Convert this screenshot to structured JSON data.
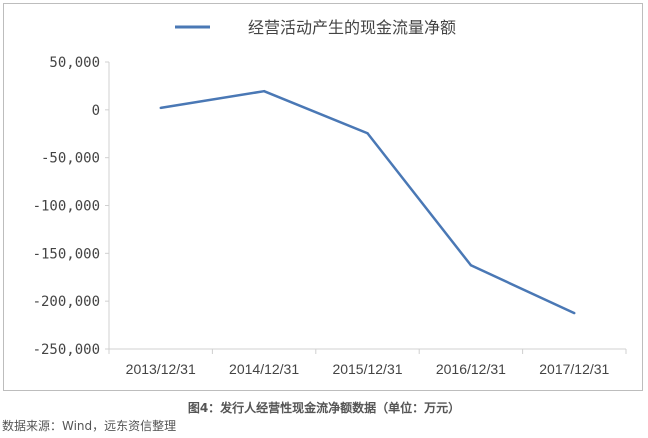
{
  "chart_data": {
    "type": "line",
    "title": "",
    "legend": {
      "placement": "top",
      "entries": [
        "经营活动产生的现金流量净额"
      ]
    },
    "categories": [
      "2013/12/31",
      "2014/12/31",
      "2015/12/31",
      "2016/12/31",
      "2017/12/31"
    ],
    "series": [
      {
        "name": "经营活动产生的现金流量净额",
        "values": [
          2000,
          19500,
          -24500,
          -162500,
          -212500
        ],
        "color": "#4a78b5"
      }
    ],
    "ylim": [
      -250000,
      50000
    ],
    "yticks": [
      50000,
      0,
      -50000,
      -100000,
      -150000,
      -200000,
      -250000
    ],
    "ytick_labels": [
      "50,000",
      "0",
      "-50,000",
      "-100,000",
      "-150,000",
      "-200,000",
      "-250,000"
    ],
    "grid": false,
    "xlabel": "",
    "ylabel": ""
  },
  "caption": "图4：发行人经营性现金流净额数据（单位：万元）",
  "source": "数据来源：Wind，远东资信整理"
}
